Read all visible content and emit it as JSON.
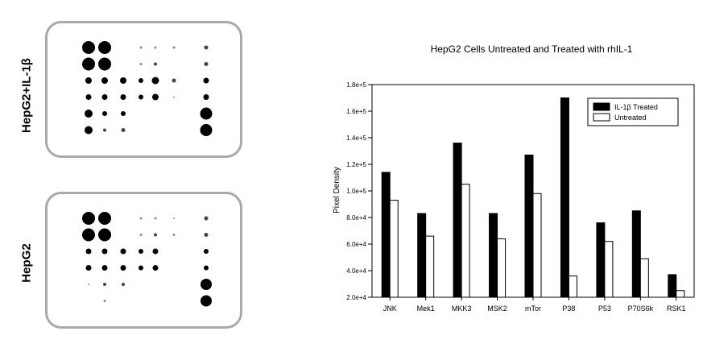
{
  "blots": {
    "top_label": "HepG2+IL-1β",
    "bottom_label": "HepG2",
    "top_dots": [
      [
        [
          0,
          0,
          8
        ],
        [
          1,
          0,
          8
        ],
        [
          3,
          0,
          1.5
        ],
        [
          4,
          0,
          1.5
        ],
        [
          5,
          0,
          1.5
        ],
        [
          6,
          0,
          2.5
        ]
      ],
      [
        [
          0,
          1,
          8
        ],
        [
          1,
          1,
          8
        ],
        [
          3,
          1,
          1.5
        ],
        [
          4,
          1,
          2
        ],
        [
          6,
          1,
          2.5
        ]
      ],
      [
        [
          0,
          2,
          4
        ],
        [
          1,
          2,
          4
        ],
        [
          2,
          2,
          4
        ],
        [
          3,
          2,
          3
        ],
        [
          4,
          2,
          4.5
        ],
        [
          5,
          2,
          2.5
        ],
        [
          6,
          2,
          3.5
        ]
      ],
      [
        [
          0,
          3,
          3.5
        ],
        [
          1,
          3,
          3.5
        ],
        [
          2,
          3,
          3.5
        ],
        [
          3,
          3,
          3
        ],
        [
          4,
          3,
          4
        ],
        [
          5,
          3,
          1
        ],
        [
          6,
          3,
          3.5
        ]
      ],
      [
        [
          0,
          4,
          5
        ],
        [
          1,
          4,
          3
        ],
        [
          2,
          4,
          3
        ],
        [
          6,
          4,
          7.5
        ]
      ],
      [
        [
          0,
          5,
          5
        ],
        [
          1,
          5,
          2
        ],
        [
          2,
          5,
          2.5
        ],
        [
          6,
          5,
          7.5
        ]
      ]
    ],
    "bottom_dots": [
      [
        [
          0,
          0,
          8
        ],
        [
          1,
          0,
          8
        ],
        [
          3,
          0,
          1.5
        ],
        [
          4,
          0,
          1.5
        ],
        [
          5,
          0,
          1
        ],
        [
          6,
          0,
          2.5
        ]
      ],
      [
        [
          0,
          1,
          8
        ],
        [
          1,
          1,
          8
        ],
        [
          3,
          1,
          1.5
        ],
        [
          4,
          1,
          2
        ],
        [
          5,
          1,
          1.5
        ],
        [
          6,
          1,
          2.5
        ]
      ],
      [
        [
          0,
          2,
          3.5
        ],
        [
          1,
          2,
          3.5
        ],
        [
          2,
          2,
          3.5
        ],
        [
          3,
          2,
          3
        ],
        [
          4,
          2,
          3.5
        ],
        [
          6,
          2,
          3
        ]
      ],
      [
        [
          0,
          3,
          3.5
        ],
        [
          1,
          3,
          3.5
        ],
        [
          2,
          3,
          3.5
        ],
        [
          3,
          3,
          3
        ],
        [
          4,
          3,
          3.5
        ],
        [
          6,
          3,
          3
        ]
      ],
      [
        [
          0,
          4,
          1
        ],
        [
          1,
          4,
          2
        ],
        [
          2,
          4,
          2
        ],
        [
          6,
          4,
          7
        ]
      ],
      [
        [
          1,
          5,
          1.5
        ],
        [
          6,
          5,
          7
        ]
      ]
    ]
  },
  "chart_data": {
    "type": "bar",
    "title": "HepG2 Cells Untreated and Treated with  rhIL-1",
    "xlabel": "",
    "ylabel": "Pixel Density",
    "categories": [
      "JNK",
      "Mek1",
      "MKK3",
      "MSK2",
      "mTor",
      "P38",
      "P53",
      "P70S6k",
      "RSK1"
    ],
    "series": [
      {
        "name": "IL-1β Treated",
        "color": "#000000",
        "values": [
          114000,
          83000,
          136000,
          83000,
          127000,
          170000,
          76000,
          85000,
          37000
        ]
      },
      {
        "name": "Untreated",
        "color": "#ffffff",
        "values": [
          93000,
          66000,
          105000,
          64000,
          98000,
          36000,
          62000,
          49000,
          25000
        ]
      }
    ],
    "ylim": [
      20000,
      180000
    ],
    "yticks": [
      "2.0e+4",
      "4.0e+4",
      "6.0e+4",
      "8.0e+4",
      "1.0e+5",
      "1.2e+5",
      "1.4e+5",
      "1.6e+5",
      "1.8e+5"
    ],
    "legend_position": "top-right",
    "grid": false
  }
}
